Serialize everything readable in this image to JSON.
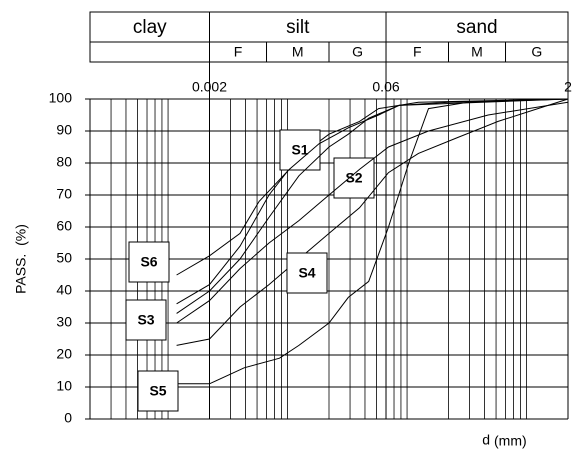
{
  "chart_data": {
    "type": "line",
    "y_label": "PASS.  (%)",
    "x_label": "d",
    "x_unit": "(mm)",
    "log_x": true,
    "grid": true,
    "minor_grid": true,
    "color": "#000000",
    "xlim": [
      0.0002,
      2
    ],
    "xticks": [
      0.002,
      0.06,
      2
    ],
    "ylim": [
      0,
      100
    ],
    "yticks": [
      0,
      10,
      20,
      30,
      40,
      50,
      60,
      70,
      80,
      90,
      100
    ],
    "fractions": [
      {
        "name": "clay",
        "range": [
          0.0002,
          0.002
        ]
      },
      {
        "name": "silt",
        "range": [
          0.002,
          0.06
        ]
      },
      {
        "name": "sand",
        "range": [
          0.06,
          2
        ]
      }
    ],
    "subfractions": [
      {
        "name": "F",
        "range": [
          0.002,
          0.006
        ]
      },
      {
        "name": "M",
        "range": [
          0.006,
          0.02
        ]
      },
      {
        "name": "G",
        "range": [
          0.02,
          0.06
        ]
      },
      {
        "name": "F",
        "range": [
          0.06,
          0.2
        ]
      },
      {
        "name": "M",
        "range": [
          0.2,
          0.6
        ]
      },
      {
        "name": "G",
        "range": [
          0.6,
          2
        ]
      }
    ],
    "series": [
      {
        "name": "S1",
        "x": [
          0.00106,
          0.002,
          0.0036,
          0.0063,
          0.0112,
          0.02,
          0.036,
          0.052,
          0.112,
          2
        ],
        "values": [
          36,
          42,
          54,
          70,
          82,
          89,
          93,
          97,
          99,
          100
        ]
      },
      {
        "name": "S2",
        "x": [
          0.00106,
          0.002,
          0.0036,
          0.0063,
          0.0112,
          0.02,
          0.029,
          0.043,
          0.077,
          2
        ],
        "values": [
          33,
          40,
          50,
          63,
          76,
          85,
          89,
          94,
          98,
          100
        ]
      },
      {
        "name": "S3",
        "x": [
          0.00106,
          0.002,
          0.0036,
          0.0063,
          0.0112,
          0.02,
          0.036,
          0.063,
          0.136,
          0.43,
          2
        ],
        "values": [
          30,
          37,
          47,
          55,
          62,
          70,
          78,
          85,
          90,
          95,
          99
        ]
      },
      {
        "name": "S4",
        "x": [
          0.00106,
          0.002,
          0.0036,
          0.0063,
          0.0112,
          0.02,
          0.036,
          0.063,
          0.112,
          0.24,
          0.52,
          1.12,
          2
        ],
        "values": [
          23,
          25,
          35,
          42,
          50,
          58,
          66,
          77,
          83,
          88,
          93,
          97,
          100
        ]
      },
      {
        "name": "S5",
        "x": [
          0.00106,
          0.002,
          0.0039,
          0.0077,
          0.0112,
          0.02,
          0.029,
          0.043,
          0.063,
          0.093,
          0.136,
          0.29,
          2
        ],
        "values": [
          11,
          11,
          16,
          19,
          23,
          30,
          38,
          43,
          60,
          80,
          97,
          99,
          100
        ]
      },
      {
        "name": "S6",
        "x": [
          0.00106,
          0.002,
          0.0036,
          0.0052,
          0.0093,
          0.0165,
          0.029,
          0.052,
          0.077,
          0.2,
          2
        ],
        "values": [
          45,
          51,
          58,
          68,
          78,
          86,
          91,
          95,
          98,
          99,
          100
        ]
      }
    ]
  }
}
